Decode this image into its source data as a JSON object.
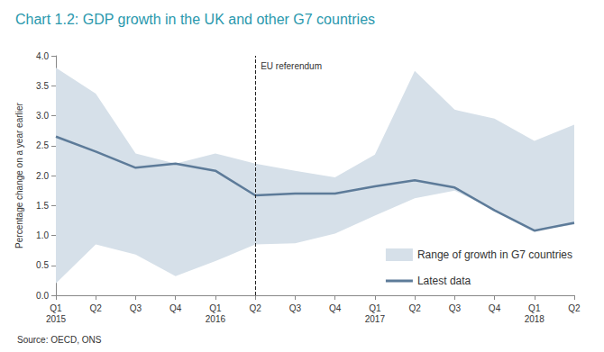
{
  "chart_data": {
    "type": "line",
    "title": "Chart 1.2: GDP growth in the UK and other G7 countries",
    "source": "Source: OECD, ONS",
    "ylabel": "Percentage change on a year earlier",
    "categories": [
      "Q1\n2015",
      "Q2",
      "Q3",
      "Q4",
      "Q1\n2016",
      "Q2",
      "Q3",
      "Q4",
      "Q1\n2017",
      "Q2",
      "Q3",
      "Q4",
      "Q1\n2018",
      "Q2"
    ],
    "series": [
      {
        "name": "Range of growth in G7 countries",
        "type": "range",
        "color": "#d6e0e9",
        "low": [
          0.2,
          0.85,
          0.68,
          0.32,
          0.57,
          0.85,
          0.87,
          1.03,
          1.33,
          1.62,
          1.75,
          1.42,
          1.08,
          1.18
        ],
        "high": [
          3.8,
          3.37,
          2.37,
          2.2,
          2.37,
          2.2,
          2.08,
          1.97,
          2.35,
          3.75,
          3.1,
          2.95,
          2.58,
          2.85
        ]
      },
      {
        "name": "Latest data",
        "type": "line",
        "color": "#5d7b99",
        "values": [
          2.65,
          2.4,
          2.13,
          2.2,
          2.08,
          1.67,
          1.7,
          1.7,
          1.82,
          1.92,
          1.8,
          1.42,
          1.08,
          1.21
        ]
      }
    ],
    "annotations": [
      {
        "text": "EU referendum",
        "category_index": 5,
        "line_style": "dashed"
      }
    ],
    "ylim": [
      0,
      4
    ],
    "yticks": [
      {
        "value": 0,
        "label": "0.0"
      },
      0.5,
      {
        "value": 1,
        "label": "1.0"
      },
      1.5,
      {
        "value": 2,
        "label": "2.0"
      },
      2.5,
      {
        "value": 3,
        "label": "3.0"
      },
      3.5,
      {
        "value": 4,
        "label": "4.0"
      }
    ],
    "grid": false,
    "legend": "lower right"
  }
}
